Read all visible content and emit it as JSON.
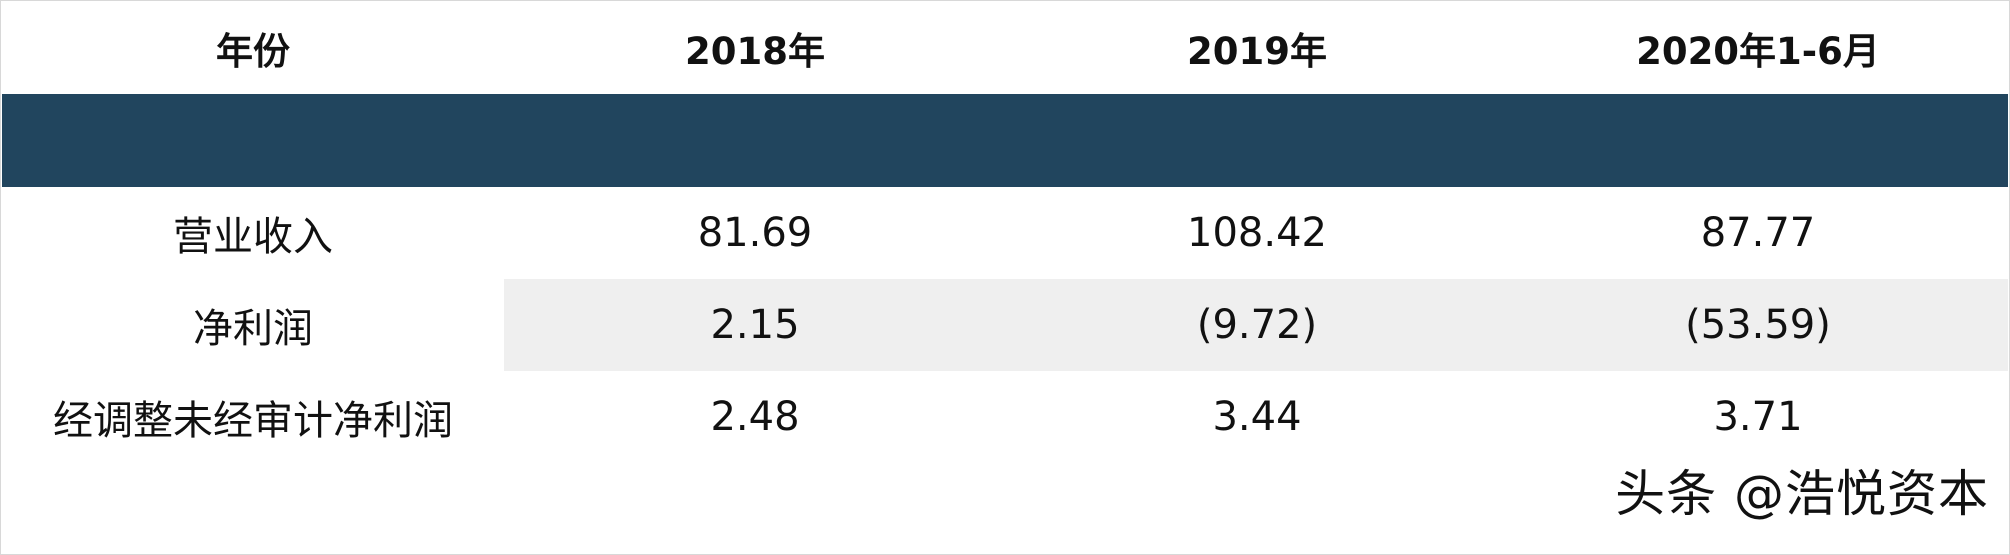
{
  "table": {
    "headers": [
      "年份",
      "2018年",
      "2019年",
      "2020年1-6月"
    ],
    "rows": [
      [
        "营业收入",
        "81.69",
        "108.42",
        "87.77"
      ],
      [
        "净利润",
        "2.15",
        "(9.72)",
        "(53.59)"
      ],
      [
        "经调整未经审计净利润",
        "2.48",
        "3.44",
        "3.71"
      ]
    ]
  },
  "colors": {
    "band": "#21455e",
    "stripe": "#efefef"
  },
  "watermark": "头条 @浩悦资本"
}
